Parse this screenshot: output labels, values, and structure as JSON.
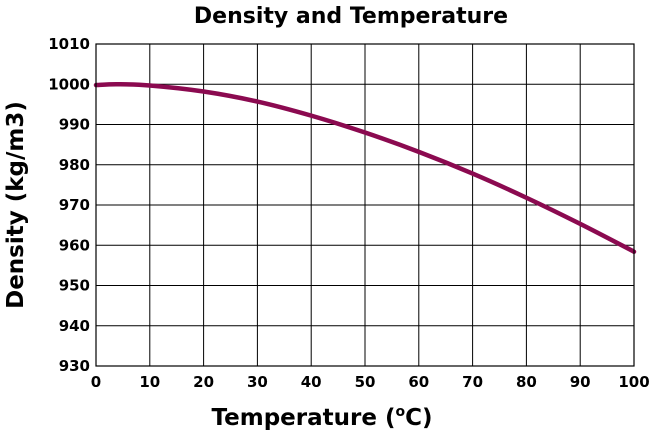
{
  "chart_data": {
    "type": "line",
    "title": "Density and Temperature",
    "xlabel": "Temperature (°C)",
    "xlabel_main": "Temperature (",
    "xlabel_sup": "o",
    "xlabel_unit": "C)",
    "ylabel": "Density (kg/m3)",
    "xlim": [
      0,
      100
    ],
    "ylim": [
      930,
      1010
    ],
    "x_ticks": [
      0,
      10,
      20,
      30,
      40,
      50,
      60,
      70,
      80,
      90,
      100
    ],
    "y_ticks": [
      930,
      940,
      950,
      960,
      970,
      980,
      990,
      1000,
      1010
    ],
    "grid": true,
    "legend": "none",
    "series": [
      {
        "color": "#8B0A50",
        "x": [
          0,
          4,
          10,
          20,
          30,
          40,
          50,
          60,
          70,
          80,
          90,
          100
        ],
        "y": [
          999.8,
          1000.0,
          999.7,
          998.2,
          995.7,
          992.2,
          988.0,
          983.2,
          977.8,
          971.8,
          965.3,
          958.4
        ]
      }
    ]
  }
}
